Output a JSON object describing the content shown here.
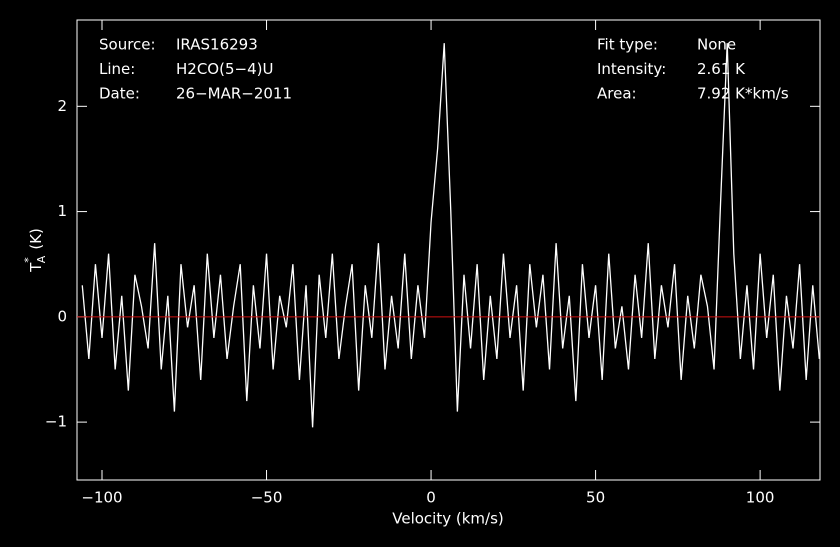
{
  "chart_data": {
    "type": "line",
    "info_left": [
      {
        "label": "Source:",
        "value": "IRAS16293"
      },
      {
        "label": "Line:",
        "value": "H2CO(5−4)U"
      },
      {
        "label": "Date:",
        "value": "26−MAR−2011"
      }
    ],
    "info_right": [
      {
        "label": "Fit type:",
        "value": "None"
      },
      {
        "label": "Intensity:",
        "value": "2.61 K"
      },
      {
        "label": "Area:",
        "value": "7.92 K*km/s"
      }
    ],
    "xlabel": "Velocity (km/s)",
    "ylabel": {
      "symbol": "T",
      "superscript": "*",
      "subscript": "A",
      "unit": "(K)"
    },
    "x": [
      -106,
      -104,
      -102,
      -100,
      -98,
      -96,
      -94,
      -92,
      -90,
      -88,
      -86,
      -84,
      -82,
      -80,
      -78,
      -76,
      -74,
      -72,
      -70,
      -68,
      -66,
      -64,
      -62,
      -60,
      -58,
      -56,
      -54,
      -52,
      -50,
      -48,
      -46,
      -44,
      -42,
      -40,
      -38,
      -36,
      -34,
      -32,
      -30,
      -28,
      -26,
      -24,
      -22,
      -20,
      -18,
      -16,
      -14,
      -12,
      -10,
      -8,
      -6,
      -4,
      -2,
      0,
      2,
      4,
      6,
      8,
      10,
      12,
      14,
      16,
      18,
      20,
      22,
      24,
      26,
      28,
      30,
      32,
      34,
      36,
      38,
      40,
      42,
      44,
      46,
      48,
      50,
      52,
      54,
      56,
      58,
      60,
      62,
      64,
      66,
      68,
      70,
      72,
      74,
      76,
      78,
      80,
      82,
      84,
      86,
      88,
      90,
      92,
      94,
      96,
      98,
      100,
      102,
      104,
      106,
      108,
      110,
      112,
      114,
      116,
      118
    ],
    "values": [
      0.3,
      -0.4,
      0.5,
      -0.2,
      0.6,
      -0.5,
      0.2,
      -0.7,
      0.4,
      0.1,
      -0.3,
      0.7,
      -0.5,
      0.2,
      -0.9,
      0.5,
      -0.1,
      0.3,
      -0.6,
      0.6,
      -0.2,
      0.4,
      -0.4,
      0.1,
      0.5,
      -0.8,
      0.3,
      -0.3,
      0.6,
      -0.5,
      0.2,
      -0.1,
      0.5,
      -0.6,
      0.3,
      -1.05,
      0.4,
      -0.2,
      0.6,
      -0.4,
      0.1,
      0.5,
      -0.7,
      0.3,
      -0.2,
      0.7,
      -0.5,
      0.2,
      -0.3,
      0.6,
      -0.4,
      0.3,
      -0.2,
      0.9,
      1.6,
      2.6,
      1.0,
      -0.9,
      0.4,
      -0.3,
      0.5,
      -0.6,
      0.2,
      -0.4,
      0.6,
      -0.2,
      0.3,
      -0.7,
      0.5,
      -0.1,
      0.4,
      -0.5,
      0.7,
      -0.3,
      0.2,
      -0.8,
      0.5,
      -0.2,
      0.3,
      -0.6,
      0.6,
      -0.3,
      0.1,
      -0.5,
      0.4,
      -0.2,
      0.7,
      -0.4,
      0.3,
      -0.1,
      0.5,
      -0.6,
      0.2,
      -0.3,
      0.4,
      0.1,
      -0.5,
      1.1,
      2.6,
      0.6,
      -0.4,
      0.3,
      -0.5,
      0.6,
      -0.2,
      0.4,
      -0.7,
      0.2,
      -0.3,
      0.5,
      -0.6,
      0.3,
      -0.4
    ],
    "color": "#ffffff",
    "zero_line_color": "#d01010",
    "xlim": [
      -107.6,
      118.2
    ],
    "xticks": [
      {
        "value": -100,
        "label": "−100"
      },
      {
        "value": -50,
        "label": "−50"
      },
      0,
      50,
      100
    ],
    "ylim": [
      -1.55,
      2.82
    ],
    "yticks": [
      {
        "value": -1,
        "label": "−1"
      },
      0,
      1,
      2
    ]
  }
}
